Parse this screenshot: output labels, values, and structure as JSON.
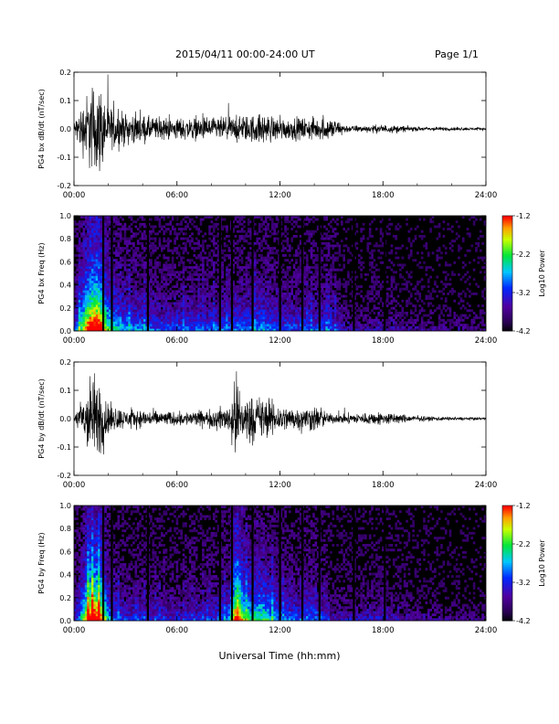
{
  "header": {
    "title": "2015/04/11  00:00-24:00 UT",
    "page": "Page 1/1"
  },
  "x_axis": {
    "label": "Universal Time (hh:mm)",
    "ticks": [
      "00:00",
      "06:00",
      "12:00",
      "18:00",
      "24:00"
    ],
    "range_hours": [
      0,
      24
    ]
  },
  "colorbar": {
    "label": "Log10 Power",
    "ticks": [
      "-1.2",
      "-2.2",
      "-3.2",
      "-4.2"
    ],
    "range": [
      -4.2,
      -1.2
    ]
  },
  "colors": {
    "background": "#ffffff",
    "trace": "#000000",
    "spectrogram_bg": "#000000"
  },
  "chart_data": [
    {
      "type": "line",
      "ylabel": "PG4 bx dB/dt (nT/sec)",
      "ylim": [
        -0.2,
        0.2
      ],
      "yticks": [
        "0.2",
        "0.1",
        "0.0",
        "-0.1",
        "-0.2"
      ],
      "xlabel": "",
      "envelope": {
        "x_hours": [
          0,
          0.5,
          1,
          1.5,
          2,
          3,
          4,
          5,
          6,
          8,
          10,
          11,
          12,
          14,
          15,
          16,
          17,
          18,
          20,
          22,
          24
        ],
        "amplitude": [
          0.03,
          0.12,
          0.2,
          0.2,
          0.1,
          0.07,
          0.06,
          0.05,
          0.05,
          0.05,
          0.06,
          0.07,
          0.05,
          0.05,
          0.05,
          0.015,
          0.015,
          0.02,
          0.01,
          0.008,
          0.006
        ]
      }
    },
    {
      "type": "heatmap",
      "ylabel": "PG4 bx Freq (Hz)",
      "ylim": [
        0.0,
        1.0
      ],
      "yticks": [
        "1.0",
        "0.8",
        "0.6",
        "0.4",
        "0.2",
        "0.0"
      ],
      "value_range": [
        -4.2,
        -1.2
      ],
      "data_gaps_hours": [
        1.7,
        2.2,
        4.3,
        8.5,
        9.2,
        10.4,
        12.0,
        13.3,
        14.3,
        16.3,
        18.1
      ]
    },
    {
      "type": "line",
      "ylabel": "PG4 by dB/dt (nT/sec)",
      "ylim": [
        -0.2,
        0.2
      ],
      "yticks": [
        "0.2",
        "0.1",
        "0.0",
        "-0.1",
        "-0.2"
      ],
      "envelope": {
        "x_hours": [
          0,
          0.5,
          1,
          1.5,
          2,
          3,
          4,
          6,
          8,
          9,
          9.5,
          10,
          11,
          12,
          13,
          14,
          15,
          18,
          20,
          22,
          24
        ],
        "amplitude": [
          0.02,
          0.1,
          0.2,
          0.18,
          0.07,
          0.04,
          0.04,
          0.03,
          0.04,
          0.06,
          0.2,
          0.1,
          0.1,
          0.06,
          0.05,
          0.06,
          0.02,
          0.03,
          0.012,
          0.008,
          0.005
        ]
      }
    },
    {
      "type": "heatmap",
      "ylabel": "PG4 by Freq (Hz)",
      "ylim": [
        0.0,
        1.0
      ],
      "yticks": [
        "1.0",
        "0.8",
        "0.6",
        "0.4",
        "0.2",
        "0.0"
      ],
      "value_range": [
        -4.2,
        -1.2
      ],
      "data_gaps_hours": [
        1.7,
        2.2,
        4.3,
        8.5,
        9.2,
        10.4,
        12.0,
        13.3,
        14.3,
        16.3,
        18.1
      ]
    }
  ]
}
